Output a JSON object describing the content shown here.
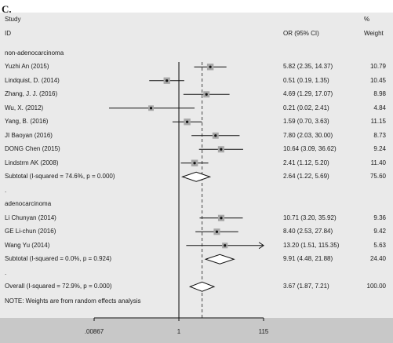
{
  "panel_label": "C.",
  "header": {
    "study_line1": "Study",
    "study_line2": "ID",
    "or_header": "OR (95% CI)",
    "pct_line1": "%",
    "pct_line2": "Weight"
  },
  "rows": [
    {
      "kind": "group",
      "label": "non-adenocarcinoma"
    },
    {
      "kind": "study",
      "label": "Yuzhi An (2015)",
      "or": 5.82,
      "lo": 2.35,
      "hi": 14.37,
      "ci_text": "5.82 (2.35, 14.37)",
      "weight": "10.79"
    },
    {
      "kind": "study",
      "label": "Lindquist, D. (2014)",
      "or": 0.51,
      "lo": 0.19,
      "hi": 1.35,
      "ci_text": "0.51 (0.19, 1.35)",
      "weight": "10.45"
    },
    {
      "kind": "study",
      "label": "Zhang, J. J. (2016)",
      "or": 4.69,
      "lo": 1.29,
      "hi": 17.07,
      "ci_text": "4.69 (1.29, 17.07)",
      "weight": "8.98"
    },
    {
      "kind": "study",
      "label": "Wu, X. (2012)",
      "or": 0.21,
      "lo": 0.02,
      "hi": 2.41,
      "ci_text": "0.21 (0.02, 2.41)",
      "weight": "4.84"
    },
    {
      "kind": "study",
      "label": "Yang, B. (2016)",
      "or": 1.59,
      "lo": 0.7,
      "hi": 3.63,
      "ci_text": "1.59 (0.70, 3.63)",
      "weight": "11.15"
    },
    {
      "kind": "study",
      "label": "JI Baoyan (2016)",
      "or": 7.8,
      "lo": 2.03,
      "hi": 30.0,
      "ci_text": "7.80 (2.03, 30.00)",
      "weight": "8.73"
    },
    {
      "kind": "study",
      "label": "DONG Chen (2015)",
      "or": 10.64,
      "lo": 3.09,
      "hi": 36.62,
      "ci_text": "10.64 (3.09, 36.62)",
      "weight": "9.24"
    },
    {
      "kind": "study",
      "label": "Lindstrm AK (2008)",
      "or": 2.41,
      "lo": 1.12,
      "hi": 5.2,
      "ci_text": "2.41 (1.12, 5.20)",
      "weight": "11.40"
    },
    {
      "kind": "subtotal",
      "label": "Subtotal  (I-squared = 74.6%, p = 0.000)",
      "or": 2.64,
      "lo": 1.22,
      "hi": 5.69,
      "ci_text": "2.64 (1.22, 5.69)",
      "weight": "75.60"
    },
    {
      "kind": "dot",
      "label": "."
    },
    {
      "kind": "group",
      "label": "adenocarcinoma"
    },
    {
      "kind": "study",
      "label": "Li Chunyan (2014)",
      "or": 10.71,
      "lo": 3.2,
      "hi": 35.92,
      "ci_text": "10.71 (3.20, 35.92)",
      "weight": "9.36"
    },
    {
      "kind": "study",
      "label": "GE Li-chun (2016)",
      "or": 8.4,
      "lo": 2.53,
      "hi": 27.84,
      "ci_text": "8.40 (2.53, 27.84)",
      "weight": "9.42"
    },
    {
      "kind": "study",
      "label": "Wang Yu (2014)",
      "or": 13.2,
      "lo": 1.51,
      "hi": 115.35,
      "ci_text": "13.20 (1.51, 115.35)",
      "weight": "5.63",
      "arrow": true
    },
    {
      "kind": "subtotal",
      "label": "Subtotal  (I-squared = 0.0%, p = 0.924)",
      "or": 9.91,
      "lo": 4.48,
      "hi": 21.88,
      "ci_text": "9.91 (4.48, 21.88)",
      "weight": "24.40"
    },
    {
      "kind": "dot",
      "label": "."
    },
    {
      "kind": "subtotal",
      "label": "Overall  (I-squared = 72.9%, p = 0.000)",
      "or": 3.67,
      "lo": 1.87,
      "hi": 7.21,
      "ci_text": "3.67 (1.87, 7.21)",
      "weight": "100.00"
    }
  ],
  "note": "NOTE: Weights are from random effects analysis",
  "axis": {
    "scale": "log",
    "min": 0.00867,
    "max": 115,
    "null_value": 1,
    "overall_line": 3.67,
    "ticks": [
      {
        "value": 0.00867,
        "label": ".00867"
      },
      {
        "value": 1,
        "label": "1"
      },
      {
        "value": 115,
        "label": "115"
      }
    ]
  },
  "colors": {
    "background": "#eaeaea",
    "axis_bar": "#c8c8c8",
    "square": "#a8a8a8",
    "line": "#111111",
    "null_line": "#000000",
    "overall_dash": "#444444"
  }
}
